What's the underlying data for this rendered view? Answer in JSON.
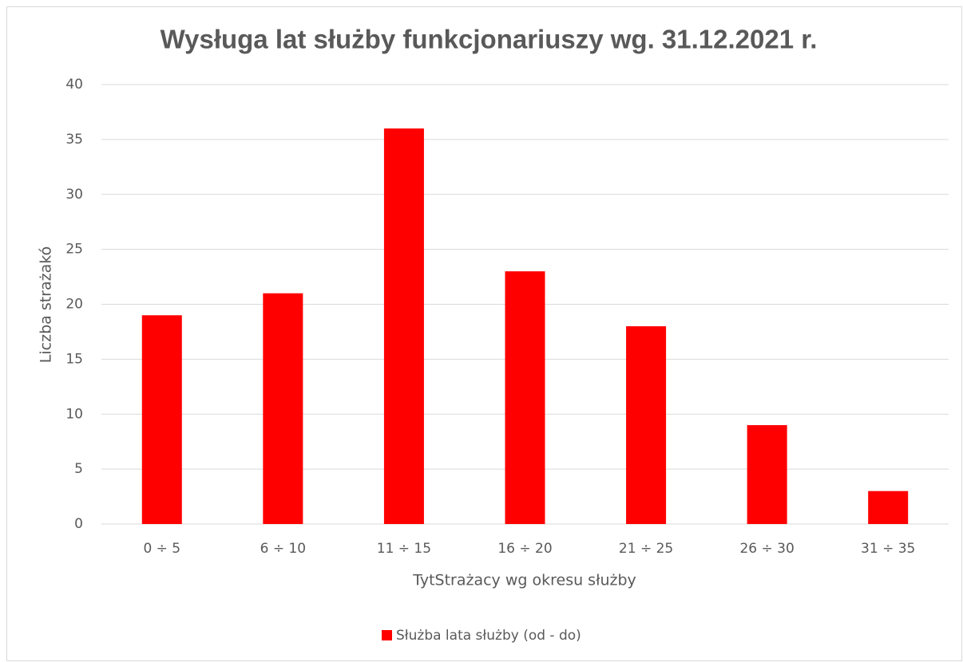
{
  "chart_data": {
    "type": "bar",
    "title": "Wysługa lat służby funkcjonariuszy wg. 31.12.2021 r.",
    "y_label": "Liczba strażakó",
    "x_label": "TytStrażacy wg okresu służby",
    "categories": [
      "0 ÷ 5",
      "6 ÷ 10",
      "11 ÷ 15",
      "16 ÷ 20",
      "21 ÷ 25",
      "26 ÷ 30",
      "31 ÷ 35"
    ],
    "series": [
      {
        "name": "Służba lata służby (od - do)",
        "color": "#ff0000",
        "values": [
          19,
          21,
          36,
          23,
          18,
          9,
          3
        ]
      }
    ],
    "ylim": [
      0,
      40
    ],
    "yticks": [
      0,
      5,
      10,
      15,
      20,
      25,
      30,
      35,
      40
    ],
    "grid": true,
    "legend": "bottom"
  }
}
